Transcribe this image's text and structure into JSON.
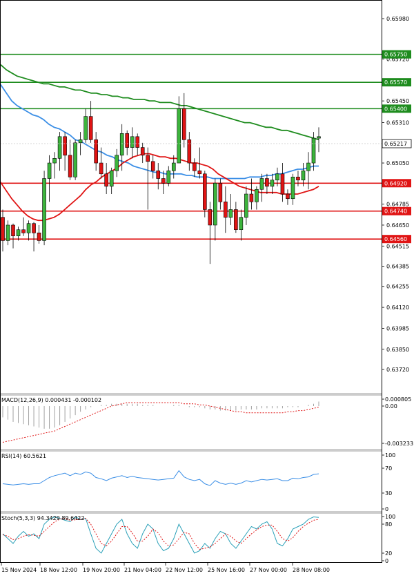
{
  "chart_data": [
    {
      "type": "candlestick",
      "title": "",
      "ylim": [
        0.6362,
        0.6605
      ],
      "y_ticks": [
        "0.65980",
        "0.65720",
        "0.65450",
        "0.65310",
        "0.65180",
        "0.65050",
        "0.64785",
        "0.64650",
        "0.64515",
        "0.64385",
        "0.64255",
        "0.64120",
        "0.63985",
        "0.63850",
        "0.63720"
      ],
      "x_ticks": [
        "15 Nov 2024",
        "18 Nov 12:00",
        "19 Nov 20:00",
        "21 Nov 04:00",
        "22 Nov 12:00",
        "25 Nov 16:00",
        "27 Nov 00:00",
        "28 Nov 08:00"
      ],
      "current_price": "0.65217",
      "levels": [
        {
          "price": 0.6575,
          "label": "0.65750",
          "color": "#1e8c1e"
        },
        {
          "price": 0.6557,
          "label": "0.65570",
          "color": "#1e8c1e"
        },
        {
          "price": 0.654,
          "label": "0.65400",
          "color": "#1e8c1e"
        },
        {
          "price": 0.6492,
          "label": "0.64920",
          "color": "#e01414"
        },
        {
          "price": 0.6474,
          "label": "0.64740",
          "color": "#e01414"
        },
        {
          "price": 0.6456,
          "label": "0.64560",
          "color": "#e01414"
        }
      ],
      "candles": [
        [
          0.647,
          0.6475,
          0.6448,
          0.6455
        ],
        [
          0.6455,
          0.6468,
          0.6452,
          0.6465
        ],
        [
          0.6465,
          0.6466,
          0.645,
          0.6458
        ],
        [
          0.6458,
          0.6464,
          0.6455,
          0.6462
        ],
        [
          0.6462,
          0.647,
          0.6458,
          0.646
        ],
        [
          0.646,
          0.6468,
          0.6455,
          0.6466
        ],
        [
          0.6466,
          0.6467,
          0.6448,
          0.646
        ],
        [
          0.646,
          0.6465,
          0.6453,
          0.6455
        ],
        [
          0.6455,
          0.65,
          0.6452,
          0.6495
        ],
        [
          0.6495,
          0.651,
          0.648,
          0.6505
        ],
        [
          0.6505,
          0.6512,
          0.6495,
          0.6508
        ],
        [
          0.6508,
          0.6525,
          0.65,
          0.6522
        ],
        [
          0.6522,
          0.6525,
          0.65,
          0.651
        ],
        [
          0.651,
          0.652,
          0.6494,
          0.6496
        ],
        [
          0.6496,
          0.652,
          0.6494,
          0.6518
        ],
        [
          0.6518,
          0.6525,
          0.651,
          0.652
        ],
        [
          0.652,
          0.654,
          0.6518,
          0.6535
        ],
        [
          0.6535,
          0.6545,
          0.6518,
          0.652
        ],
        [
          0.652,
          0.6525,
          0.65,
          0.6505
        ],
        [
          0.6505,
          0.6515,
          0.6495,
          0.6498
        ],
        [
          0.6498,
          0.6505,
          0.6485,
          0.649
        ],
        [
          0.649,
          0.6502,
          0.6485,
          0.65
        ],
        [
          0.65,
          0.6514,
          0.6496,
          0.651
        ],
        [
          0.651,
          0.653,
          0.65,
          0.6524
        ],
        [
          0.6524,
          0.6526,
          0.651,
          0.6515
        ],
        [
          0.6515,
          0.6528,
          0.6508,
          0.6522
        ],
        [
          0.6522,
          0.6524,
          0.651,
          0.6515
        ],
        [
          0.6515,
          0.6518,
          0.6505,
          0.651
        ],
        [
          0.651,
          0.6515,
          0.6475,
          0.6506
        ],
        [
          0.6506,
          0.651,
          0.6495,
          0.65
        ],
        [
          0.65,
          0.6505,
          0.6488,
          0.6495
        ],
        [
          0.6495,
          0.65,
          0.6485,
          0.6492
        ],
        [
          0.6492,
          0.6503,
          0.649,
          0.65
        ],
        [
          0.65,
          0.651,
          0.6495,
          0.6505
        ],
        [
          0.6505,
          0.6548,
          0.6505,
          0.654
        ],
        [
          0.654,
          0.655,
          0.6515,
          0.652
        ],
        [
          0.652,
          0.6525,
          0.65,
          0.6505
        ],
        [
          0.6505,
          0.6508,
          0.6496,
          0.65
        ],
        [
          0.65,
          0.6515,
          0.6495,
          0.6498
        ],
        [
          0.6498,
          0.65,
          0.647,
          0.6475
        ],
        [
          0.6475,
          0.648,
          0.644,
          0.6465
        ],
        [
          0.6465,
          0.6495,
          0.6455,
          0.6492
        ],
        [
          0.6492,
          0.6495,
          0.6475,
          0.648
        ],
        [
          0.648,
          0.649,
          0.646,
          0.647
        ],
        [
          0.647,
          0.6485,
          0.6465,
          0.6475
        ],
        [
          0.6475,
          0.648,
          0.646,
          0.6462
        ],
        [
          0.6462,
          0.6475,
          0.6455,
          0.647
        ],
        [
          0.647,
          0.649,
          0.6465,
          0.6485
        ],
        [
          0.6485,
          0.6495,
          0.6475,
          0.648
        ],
        [
          0.648,
          0.649,
          0.6475,
          0.6488
        ],
        [
          0.6488,
          0.6498,
          0.648,
          0.6495
        ],
        [
          0.6495,
          0.6498,
          0.6485,
          0.649
        ],
        [
          0.649,
          0.6498,
          0.6485,
          0.6494
        ],
        [
          0.6494,
          0.6502,
          0.649,
          0.6498
        ],
        [
          0.6498,
          0.6505,
          0.648,
          0.6485
        ],
        [
          0.6485,
          0.6488,
          0.6478,
          0.6482
        ],
        [
          0.6482,
          0.6498,
          0.6478,
          0.6496
        ],
        [
          0.6496,
          0.65,
          0.649,
          0.6494
        ],
        [
          0.6494,
          0.6505,
          0.649,
          0.65
        ],
        [
          0.65,
          0.6512,
          0.6488,
          0.6505
        ],
        [
          0.6505,
          0.6525,
          0.65,
          0.6521
        ],
        [
          0.6521,
          0.6528,
          0.6512,
          0.6522
        ]
      ],
      "series": [
        {
          "name": "",
          "color": "#1e8c1e",
          "values": [
            0.657,
            0.6568,
            0.6565,
            0.6563,
            0.6561,
            0.656,
            0.6559,
            0.6558,
            0.6557,
            0.6556,
            0.6556,
            0.6555,
            0.6554,
            0.6554,
            0.6553,
            0.6552,
            0.6552,
            0.6551,
            0.655,
            0.655,
            0.6549,
            0.6549,
            0.6548,
            0.6548,
            0.6547,
            0.6547,
            0.6546,
            0.6546,
            0.6546,
            0.6545,
            0.6545,
            0.6544,
            0.6544,
            0.6544,
            0.6543,
            0.6542,
            0.6542,
            0.6541,
            0.654,
            0.6539,
            0.6538,
            0.6537,
            0.6536,
            0.6535,
            0.6534,
            0.6533,
            0.6532,
            0.6531,
            0.6531,
            0.653,
            0.6529,
            0.6528,
            0.6528,
            0.6527,
            0.6526,
            0.6526,
            0.6525,
            0.6524,
            0.6523,
            0.6522,
            0.6521,
            0.652
          ]
        },
        {
          "name": "",
          "color": "#3a8ee6",
          "values": [
            0.656,
            0.6555,
            0.655,
            0.6545,
            0.6542,
            0.654,
            0.6538,
            0.6536,
            0.6535,
            0.6533,
            0.653,
            0.6528,
            0.6527,
            0.6525,
            0.6523,
            0.652,
            0.6519,
            0.6517,
            0.6515,
            0.6513,
            0.6512,
            0.651,
            0.6509,
            0.6507,
            0.6506,
            0.6505,
            0.6503,
            0.6502,
            0.6501,
            0.65,
            0.6499,
            0.6499,
            0.6498,
            0.6498,
            0.6498,
            0.6498,
            0.6497,
            0.6497,
            0.6496,
            0.6496,
            0.6496,
            0.6495,
            0.6495,
            0.6495,
            0.6495,
            0.6495,
            0.6495,
            0.6495,
            0.6496,
            0.6496,
            0.6496,
            0.6497,
            0.6497,
            0.6498,
            0.6498,
            0.6499,
            0.65,
            0.6501,
            0.6501,
            0.6502,
            0.6503,
            0.6503
          ]
        },
        {
          "name": "",
          "color": "#e01414",
          "values": [
            0.6497,
            0.6492,
            0.6487,
            0.6482,
            0.6478,
            0.6474,
            0.6471,
            0.6469,
            0.6468,
            0.6468,
            0.6469,
            0.647,
            0.6472,
            0.6475,
            0.6478,
            0.6481,
            0.6484,
            0.6488,
            0.6491,
            0.6493,
            0.6496,
            0.6498,
            0.65,
            0.6502,
            0.6505,
            0.6507,
            0.6509,
            0.651,
            0.6511,
            0.6511,
            0.651,
            0.6509,
            0.6509,
            0.6508,
            0.6508,
            0.6507,
            0.6506,
            0.6505,
            0.6505,
            0.6504,
            0.6503,
            0.6501,
            0.6498,
            0.6496,
            0.6494,
            0.6492,
            0.649,
            0.6489,
            0.6488,
            0.6487,
            0.6486,
            0.6486,
            0.6486,
            0.6486,
            0.6485,
            0.6485,
            0.6485,
            0.6485,
            0.6486,
            0.6487,
            0.6488,
            0.649
          ]
        }
      ]
    },
    {
      "type": "bar",
      "title": "MACD(12,26,9) 0.000431 -0.000102",
      "ylim": [
        -0.003233,
        0.000805
      ],
      "y_ticks": [
        "0.000805",
        "0.00",
        "-0.003233"
      ],
      "histogram": [
        -0.001,
        -0.0012,
        -0.0014,
        -0.0015,
        -0.0016,
        -0.0017,
        -0.0018,
        -0.0019,
        -0.002,
        -0.002,
        -0.0019,
        -0.0017,
        -0.0014,
        -0.0011,
        -0.0008,
        -0.0005,
        -0.0003,
        -0.0001,
        0.0,
        0.0001,
        0.0001,
        0.0002,
        0.0002,
        0.0002,
        0.0002,
        0.0002,
        0.0002,
        0.0001,
        0.0001,
        0.0001,
        0.0,
        0.0,
        0.0,
        0.0001,
        0.0001,
        0.0,
        -0.0001,
        -0.0001,
        -0.0001,
        -0.0002,
        -0.0003,
        -0.0003,
        -0.0004,
        -0.0004,
        -0.0004,
        -0.0004,
        -0.0003,
        -0.0003,
        -0.0003,
        -0.0003,
        -0.0002,
        -0.0002,
        -0.0002,
        -0.0002,
        -0.0002,
        -0.0001,
        -0.0001,
        -0.0001,
        0.0,
        0.0001,
        0.0002,
        0.0004
      ],
      "signal": [
        -0.0032,
        -0.0031,
        -0.003,
        -0.0029,
        -0.0028,
        -0.0027,
        -0.0026,
        -0.0025,
        -0.0024,
        -0.0023,
        -0.0022,
        -0.002,
        -0.0018,
        -0.0016,
        -0.0014,
        -0.0012,
        -0.001,
        -0.0008,
        -0.0006,
        -0.0004,
        -0.0002,
        0.0,
        0.0001,
        0.0002,
        0.0003,
        0.0003,
        0.0003,
        0.0003,
        0.0003,
        0.0003,
        0.0003,
        0.0003,
        0.0003,
        0.0003,
        0.0003,
        0.0002,
        0.0002,
        0.0002,
        0.0001,
        0.0001,
        0.0,
        -0.0001,
        -0.0002,
        -0.0003,
        -0.0004,
        -0.0005,
        -0.0005,
        -0.0006,
        -0.0006,
        -0.0006,
        -0.0006,
        -0.0006,
        -0.0006,
        -0.0006,
        -0.0006,
        -0.0005,
        -0.0005,
        -0.0004,
        -0.0004,
        -0.0003,
        -0.0002,
        -0.0001
      ]
    },
    {
      "type": "line",
      "title": "RSI(14) 60.5621",
      "ylim": [
        0,
        100
      ],
      "y_ticks": [
        "100",
        "70",
        "30",
        "0"
      ],
      "values": [
        45,
        44,
        43,
        44,
        45,
        44,
        45,
        45,
        50,
        55,
        58,
        60,
        62,
        58,
        62,
        60,
        64,
        62,
        55,
        53,
        50,
        54,
        56,
        58,
        55,
        57,
        55,
        54,
        53,
        52,
        51,
        52,
        53,
        54,
        66,
        56,
        52,
        50,
        52,
        45,
        42,
        50,
        46,
        44,
        46,
        44,
        46,
        50,
        48,
        50,
        52,
        51,
        52,
        53,
        50,
        50,
        54,
        53,
        55,
        56,
        60,
        61
      ]
    },
    {
      "type": "line",
      "title": "Stoch(5,3,3) 94.3429 89.6422",
      "ylim": [
        0,
        100
      ],
      "y_ticks": [
        "100",
        "80",
        "20",
        "0"
      ],
      "k": [
        60,
        50,
        40,
        55,
        65,
        55,
        60,
        50,
        80,
        90,
        95,
        92,
        88,
        85,
        95,
        90,
        92,
        60,
        30,
        20,
        40,
        60,
        80,
        90,
        60,
        40,
        30,
        60,
        80,
        70,
        40,
        25,
        30,
        50,
        80,
        60,
        40,
        20,
        25,
        40,
        30,
        50,
        65,
        60,
        40,
        30,
        45,
        60,
        75,
        70,
        80,
        85,
        70,
        40,
        35,
        50,
        70,
        75,
        80,
        90,
        95,
        94
      ],
      "d": [
        58,
        55,
        48,
        50,
        55,
        58,
        57,
        55,
        65,
        75,
        85,
        90,
        92,
        88,
        89,
        90,
        92,
        80,
        60,
        40,
        35,
        45,
        60,
        75,
        75,
        62,
        45,
        45,
        55,
        70,
        62,
        45,
        35,
        37,
        50,
        63,
        60,
        40,
        28,
        30,
        33,
        40,
        50,
        60,
        55,
        45,
        40,
        50,
        60,
        68,
        75,
        78,
        78,
        65,
        50,
        45,
        52,
        65,
        75,
        82,
        88,
        90
      ]
    }
  ]
}
